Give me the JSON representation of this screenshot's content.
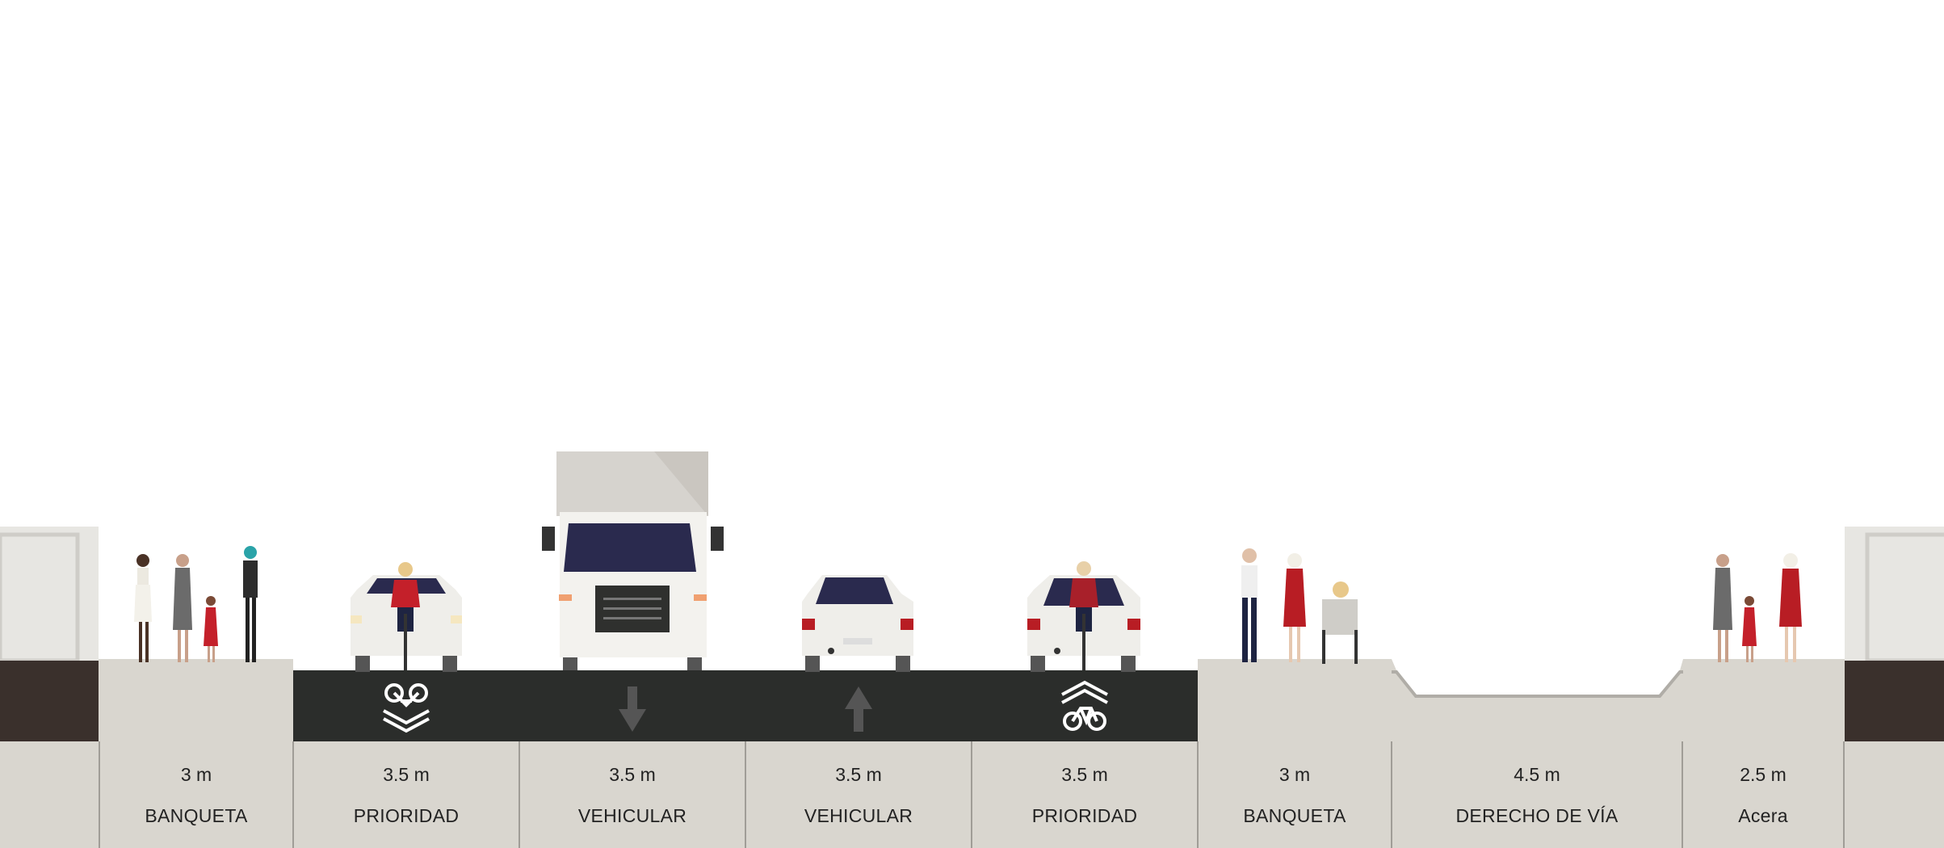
{
  "colors": {
    "sidewalk": "#d9d6cf",
    "road": "#2b2d2b",
    "building_base": "#3a302c",
    "building_wall": "#e7e6e2",
    "bottom_bar": "#d9d6cf",
    "divider": "#a09d97",
    "lane_marking": "#ffffff",
    "arrow": "#555555"
  },
  "segments": [
    {
      "width": "3 m",
      "name": "BANQUETA"
    },
    {
      "width": "3.5 m",
      "name": "PRIORIDAD"
    },
    {
      "width": "3.5 m",
      "name": "VEHICULAR"
    },
    {
      "width": "3.5 m",
      "name": "VEHICULAR"
    },
    {
      "width": "3.5 m",
      "name": "PRIORIDAD"
    },
    {
      "width": "3 m",
      "name": "BANQUETA"
    },
    {
      "width": "4.5 m",
      "name": "DERECHO DE VÍA"
    },
    {
      "width": "2.5 m",
      "name": "Acera"
    }
  ],
  "icons": {
    "lane1": "bike-priority-down-icon",
    "lane2": "arrow-down-icon",
    "lane3": "arrow-up-icon",
    "lane4": "bike-priority-up-icon"
  }
}
